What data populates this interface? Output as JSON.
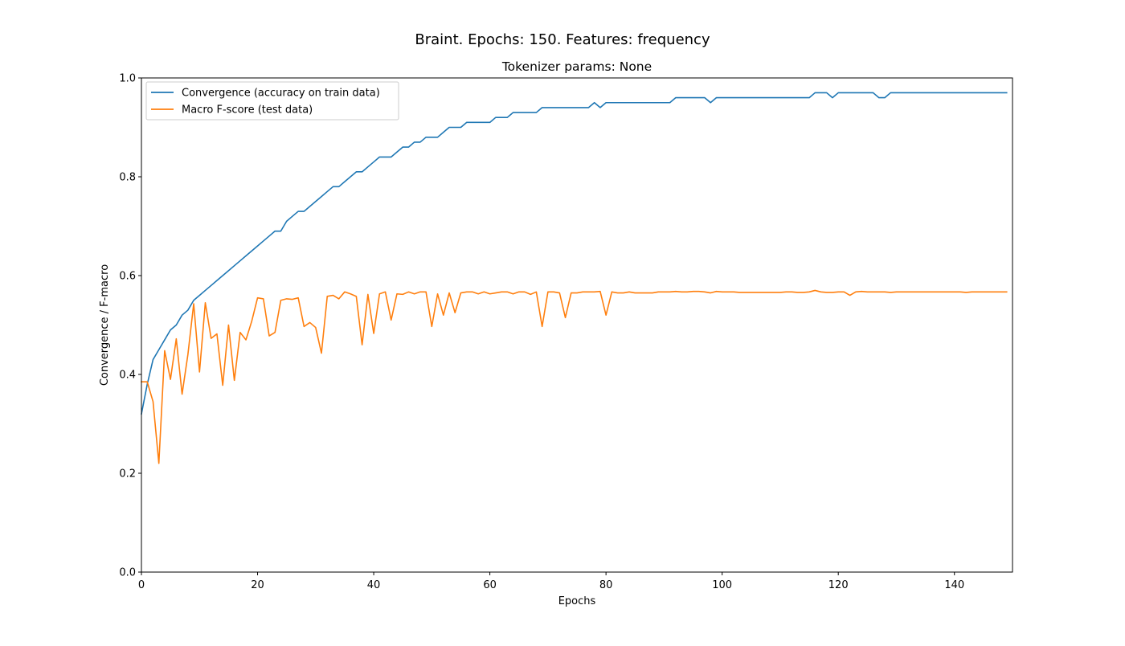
{
  "figure": {
    "suptitle": "Braint. Epochs: 150. Features: frequency",
    "title": "Tokenizer params: None"
  },
  "chart_data": {
    "type": "line",
    "title": "Tokenizer params: None",
    "suptitle": "Braint. Epochs: 150. Features: frequency",
    "xlabel": "Epochs",
    "ylabel": "Convergence / F-macro",
    "xlim": [
      0,
      150
    ],
    "ylim": [
      0.0,
      1.0
    ],
    "xticks": [
      0,
      20,
      40,
      60,
      80,
      100,
      120,
      140
    ],
    "yticks": [
      0.0,
      0.2,
      0.4,
      0.6,
      0.8,
      1.0
    ],
    "xtick_labels": [
      "0",
      "20",
      "40",
      "60",
      "80",
      "100",
      "120",
      "140"
    ],
    "ytick_labels": [
      "0.0",
      "0.2",
      "0.4",
      "0.6",
      "0.8",
      "1.0"
    ],
    "grid": false,
    "legend_position": "upper-left",
    "series": [
      {
        "name": "Convergence (accuracy on train data)",
        "color": "#1f77b4",
        "x_start": 0,
        "x_step": 1,
        "values": [
          0.32,
          0.38,
          0.43,
          0.45,
          0.47,
          0.49,
          0.5,
          0.52,
          0.53,
          0.55,
          0.56,
          0.57,
          0.58,
          0.59,
          0.6,
          0.61,
          0.62,
          0.63,
          0.64,
          0.65,
          0.66,
          0.67,
          0.68,
          0.69,
          0.69,
          0.71,
          0.72,
          0.73,
          0.73,
          0.74,
          0.75,
          0.76,
          0.77,
          0.78,
          0.78,
          0.79,
          0.8,
          0.81,
          0.81,
          0.82,
          0.83,
          0.84,
          0.84,
          0.84,
          0.85,
          0.86,
          0.86,
          0.87,
          0.87,
          0.88,
          0.88,
          0.88,
          0.89,
          0.9,
          0.9,
          0.9,
          0.91,
          0.91,
          0.91,
          0.91,
          0.91,
          0.92,
          0.92,
          0.92,
          0.93,
          0.93,
          0.93,
          0.93,
          0.93,
          0.94,
          0.94,
          0.94,
          0.94,
          0.94,
          0.94,
          0.94,
          0.94,
          0.94,
          0.95,
          0.94,
          0.95,
          0.95,
          0.95,
          0.95,
          0.95,
          0.95,
          0.95,
          0.95,
          0.95,
          0.95,
          0.95,
          0.95,
          0.96,
          0.96,
          0.96,
          0.96,
          0.96,
          0.96,
          0.95,
          0.96,
          0.96,
          0.96,
          0.96,
          0.96,
          0.96,
          0.96,
          0.96,
          0.96,
          0.96,
          0.96,
          0.96,
          0.96,
          0.96,
          0.96,
          0.96,
          0.96,
          0.97,
          0.97,
          0.97,
          0.96,
          0.97,
          0.97,
          0.97,
          0.97,
          0.97,
          0.97,
          0.97,
          0.96,
          0.96,
          0.97,
          0.97,
          0.97,
          0.97,
          0.97,
          0.97,
          0.97,
          0.97,
          0.97,
          0.97,
          0.97,
          0.97,
          0.97,
          0.97,
          0.97,
          0.97,
          0.97,
          0.97,
          0.97,
          0.97,
          0.97
        ]
      },
      {
        "name": "Macro F-score (test data)",
        "color": "#ff7f0e",
        "x_start": 0,
        "x_step": 1,
        "values": [
          0.385,
          0.385,
          0.345,
          0.22,
          0.448,
          0.39,
          0.472,
          0.36,
          0.44,
          0.543,
          0.405,
          0.545,
          0.473,
          0.482,
          0.378,
          0.5,
          0.388,
          0.485,
          0.47,
          0.508,
          0.555,
          0.553,
          0.478,
          0.485,
          0.55,
          0.553,
          0.552,
          0.555,
          0.497,
          0.505,
          0.495,
          0.443,
          0.558,
          0.56,
          0.553,
          0.567,
          0.563,
          0.558,
          0.46,
          0.562,
          0.483,
          0.563,
          0.567,
          0.51,
          0.563,
          0.562,
          0.567,
          0.563,
          0.567,
          0.567,
          0.497,
          0.563,
          0.52,
          0.565,
          0.525,
          0.565,
          0.567,
          0.567,
          0.563,
          0.567,
          0.563,
          0.565,
          0.567,
          0.567,
          0.563,
          0.567,
          0.567,
          0.562,
          0.567,
          0.497,
          0.567,
          0.567,
          0.565,
          0.515,
          0.565,
          0.565,
          0.567,
          0.567,
          0.567,
          0.568,
          0.52,
          0.567,
          0.565,
          0.565,
          0.567,
          0.565,
          0.565,
          0.565,
          0.565,
          0.567,
          0.567,
          0.567,
          0.568,
          0.567,
          0.567,
          0.568,
          0.568,
          0.567,
          0.565,
          0.568,
          0.567,
          0.567,
          0.567,
          0.566,
          0.566,
          0.566,
          0.566,
          0.566,
          0.566,
          0.566,
          0.566,
          0.567,
          0.567,
          0.566,
          0.566,
          0.567,
          0.57,
          0.567,
          0.566,
          0.566,
          0.567,
          0.567,
          0.56,
          0.567,
          0.568,
          0.567,
          0.567,
          0.567,
          0.567,
          0.566,
          0.567,
          0.567,
          0.567,
          0.567,
          0.567,
          0.567,
          0.567,
          0.567,
          0.567,
          0.567,
          0.567,
          0.567,
          0.566,
          0.567,
          0.567,
          0.567,
          0.567,
          0.567,
          0.567,
          0.567
        ]
      }
    ]
  }
}
